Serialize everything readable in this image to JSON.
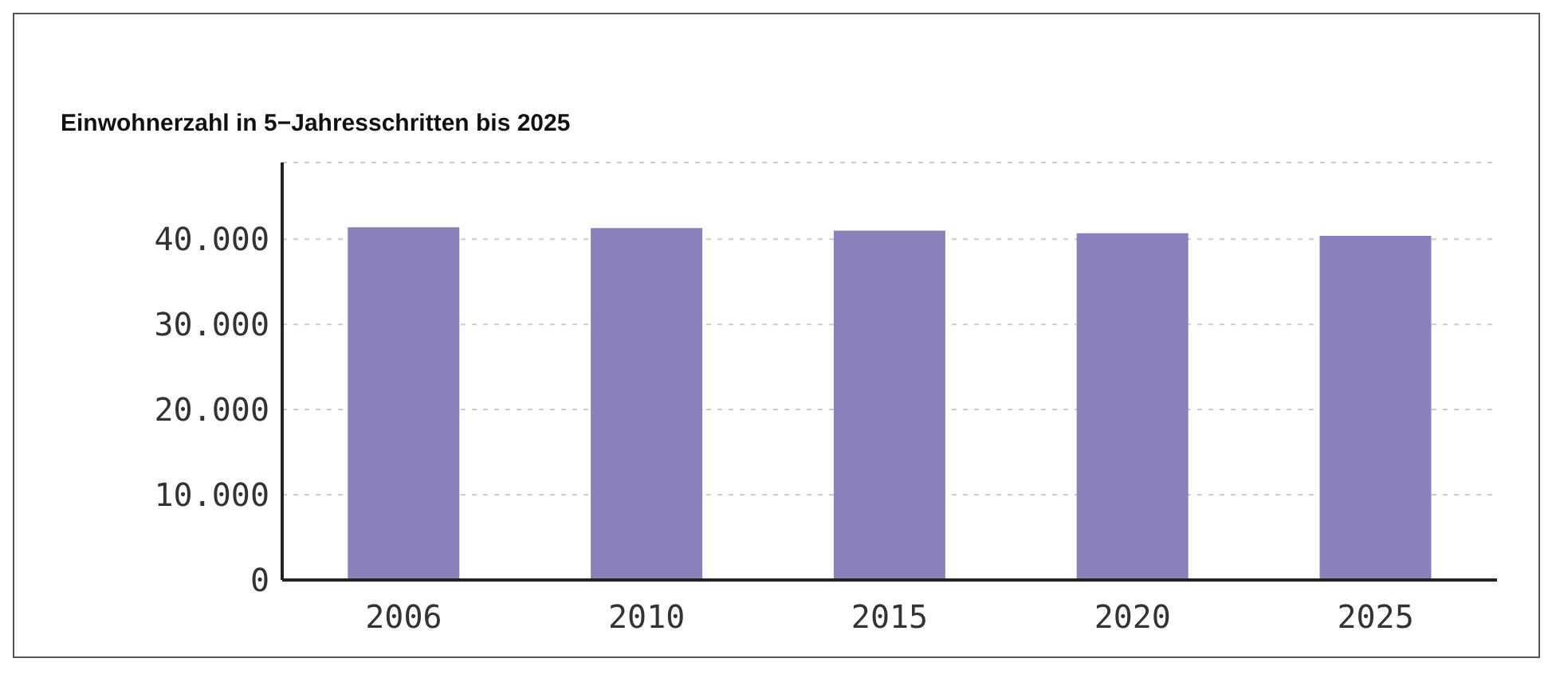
{
  "chart_data": {
    "type": "bar",
    "title": "Einwohnerzahl in 5−Jahresschritten bis 2025",
    "categories": [
      "2006",
      "2010",
      "2015",
      "2020",
      "2025"
    ],
    "values": [
      41400,
      41300,
      41000,
      40700,
      40400
    ],
    "color": "#8c80ba",
    "ylim": [
      0,
      49000
    ],
    "yticks": [
      {
        "value": 0,
        "label": "0"
      },
      {
        "value": 10000,
        "label": "10.000"
      },
      {
        "value": 20000,
        "label": "20.000"
      },
      {
        "value": 30000,
        "label": "30.000"
      },
      {
        "value": 40000,
        "label": "40.000"
      }
    ],
    "grid": "y"
  }
}
